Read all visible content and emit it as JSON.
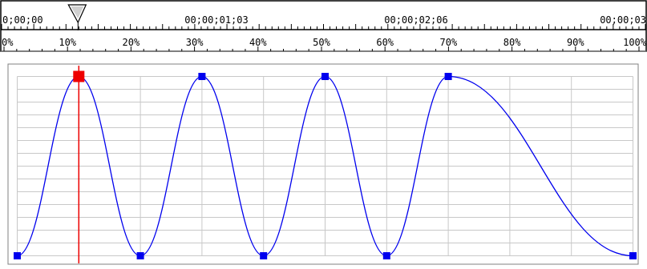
{
  "timecodes": [
    "0;00;00",
    "00;00;01;03",
    "00;00;02;06",
    "00;00;03"
  ],
  "percent_labels": [
    "0%",
    "10%",
    "20%",
    "30%",
    "40%",
    "50%",
    "60%",
    "70%",
    "80%",
    "90%",
    "100%"
  ],
  "playhead_percent": 10,
  "keyframes": [
    {
      "percent": 0,
      "value": 0,
      "selected": false
    },
    {
      "percent": 10,
      "value": 1,
      "selected": true
    },
    {
      "percent": 20,
      "value": 0,
      "selected": false
    },
    {
      "percent": 30,
      "value": 1,
      "selected": false
    },
    {
      "percent": 40,
      "value": 0,
      "selected": false
    },
    {
      "percent": 50,
      "value": 1,
      "selected": false
    },
    {
      "percent": 60,
      "value": 0,
      "selected": false
    },
    {
      "percent": 70,
      "value": 1,
      "selected": false
    },
    {
      "percent": 100,
      "value": 0,
      "selected": false
    }
  ],
  "colors": {
    "curve": "#0000ee",
    "keyframe": "#0000ee",
    "selected_keyframe": "#ee0000",
    "playhead_line": "#ee0000",
    "grid": "#c8c8c8",
    "frame": "#000000"
  }
}
